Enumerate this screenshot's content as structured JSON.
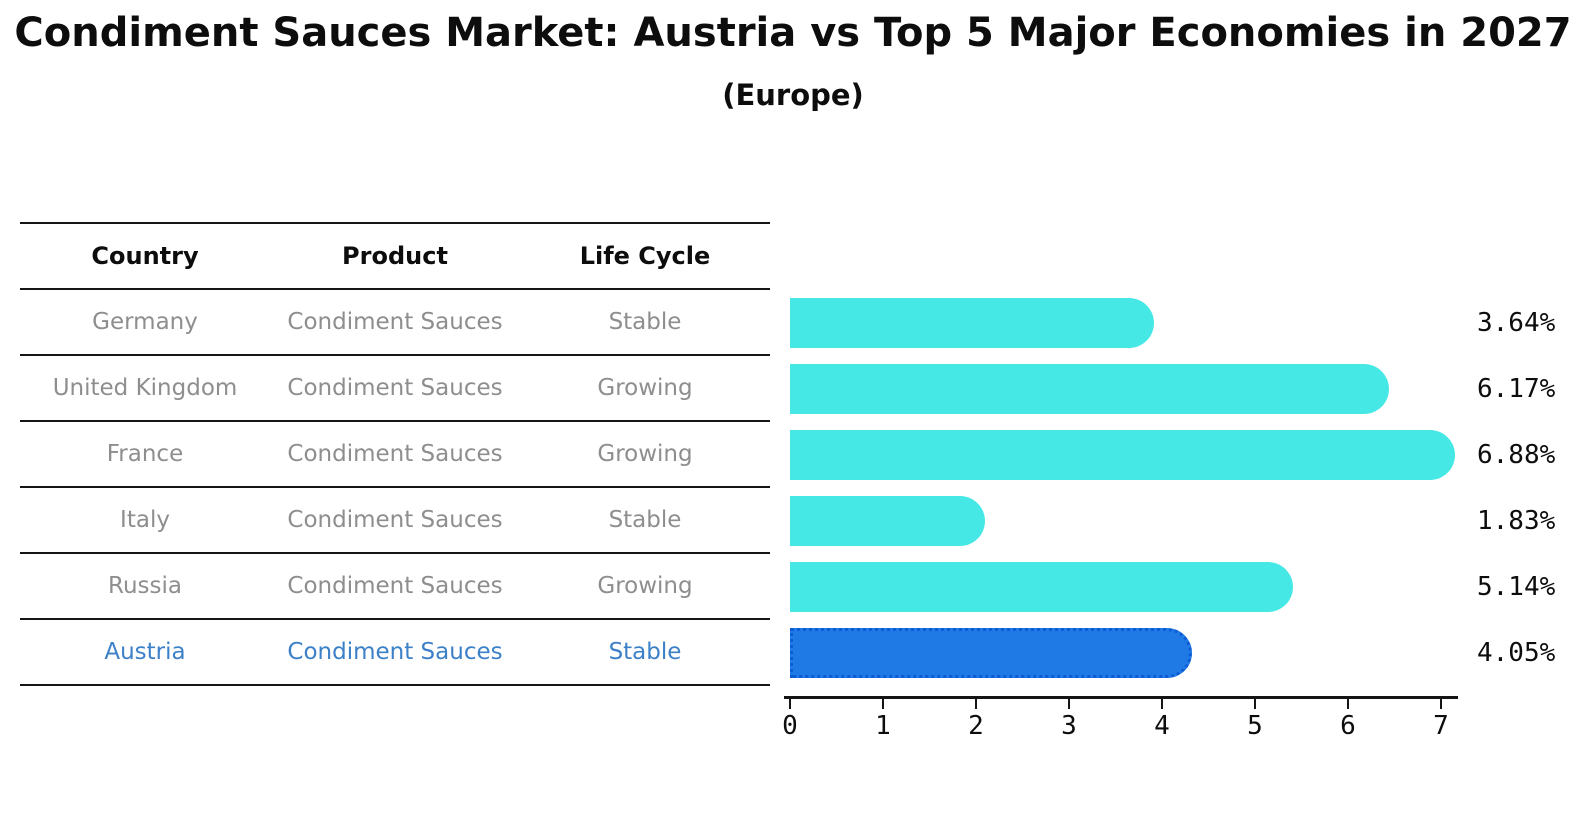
{
  "title": "Condiment Sauces Market: Austria vs Top 5 Major Economies in 2027",
  "subtitle": "(Europe)",
  "table": {
    "headers": [
      "Country",
      "Product",
      "Life Cycle"
    ],
    "rows": [
      {
        "country": "Germany",
        "product": "Condiment Sauces",
        "life_cycle": "Stable",
        "highlighted": false
      },
      {
        "country": "United Kingdom",
        "product": "Condiment Sauces",
        "life_cycle": "Growing",
        "highlighted": false
      },
      {
        "country": "France",
        "product": "Condiment Sauces",
        "life_cycle": "Growing",
        "highlighted": false
      },
      {
        "country": "Italy",
        "product": "Condiment Sauces",
        "life_cycle": "Stable",
        "highlighted": false
      },
      {
        "country": "Russia",
        "product": "Condiment Sauces",
        "life_cycle": "Growing",
        "highlighted": false
      },
      {
        "country": "Austria",
        "product": "Condiment Sauces",
        "life_cycle": "Stable",
        "highlighted": true
      }
    ]
  },
  "chart_data": {
    "type": "bar",
    "orientation": "horizontal",
    "title": "Condiment Sauces Market: Austria vs Top 5 Major Economies in 2027 (Europe)",
    "categories": [
      "Germany",
      "United Kingdom",
      "France",
      "Italy",
      "Russia",
      "Austria"
    ],
    "values": [
      3.64,
      6.17,
      6.88,
      1.83,
      5.14,
      4.05
    ],
    "labels": [
      "3.64%",
      "6.17%",
      "6.88%",
      "1.83%",
      "5.14%",
      "4.05%"
    ],
    "xticks": [
      "0",
      "1",
      "2",
      "3",
      "4",
      "5",
      "6",
      "7"
    ],
    "xlim": [
      0,
      7
    ],
    "grid": false,
    "legend": false,
    "bar_color": "#46e8e6",
    "highlight_index": 5,
    "highlight_color": "#1f7ae6",
    "highlight_border": "#0e5bd6",
    "text_color": "#0d0d0d",
    "muted_text_color": "#8e8e8e",
    "highlight_text_color": "#3c80c8",
    "line_color": "#151515"
  }
}
